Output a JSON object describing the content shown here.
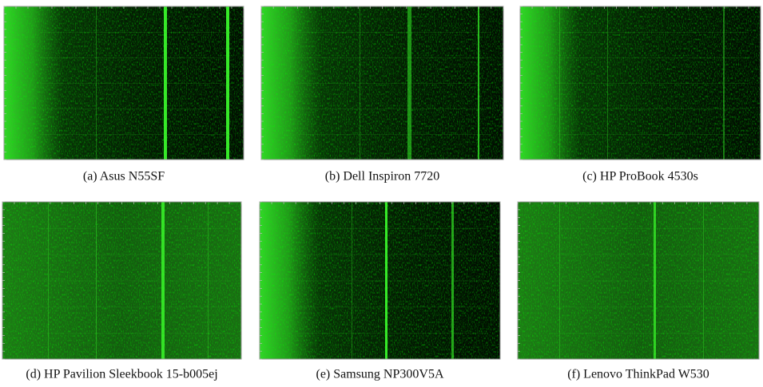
{
  "figure": {
    "panels": [
      {
        "caption": "(a) Asus N55SF"
      },
      {
        "caption": "(b) Dell Inspiron 7720"
      },
      {
        "caption": "(c) HP ProBook 4530s"
      },
      {
        "caption": "(d) HP Pavilion Sleekbook 15-b005ej"
      },
      {
        "caption": "(e) Samsung NP300V5A"
      },
      {
        "caption": "(f) Lenovo ThinkPad W530"
      }
    ]
  }
}
